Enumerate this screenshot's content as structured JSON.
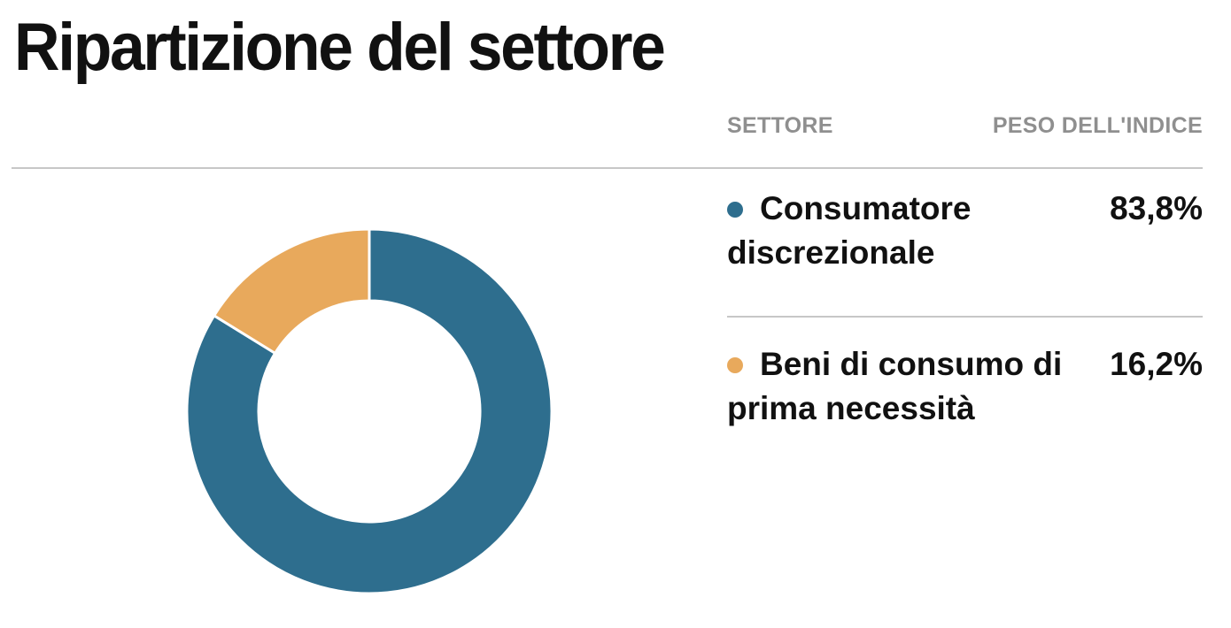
{
  "title": "Ripartizione del settore",
  "table": {
    "headers": {
      "sector": "SETTORE",
      "weight": "PESO DELL'INDICE"
    },
    "rows": [
      {
        "label": "Consumatore discrezionale",
        "value": "83,8%",
        "color": "#2e6e8e"
      },
      {
        "label": "Beni di consumo di prima necessità",
        "value": "16,2%",
        "color": "#e8a95c"
      }
    ]
  },
  "chart_data": {
    "type": "pie",
    "title": "Ripartizione del settore",
    "labels": [
      "Consumatore discrezionale",
      "Beni di consumo di prima necessità"
    ],
    "values": [
      83.8,
      16.2
    ],
    "unit": "%",
    "colors": [
      "#2e6e8e",
      "#e8a95c"
    ],
    "donut": true,
    "inner_radius_ratio": 0.605,
    "start_angle_deg": 0,
    "direction": "clockwise",
    "separator_color": "#ffffff",
    "legend_position": "right-table"
  }
}
